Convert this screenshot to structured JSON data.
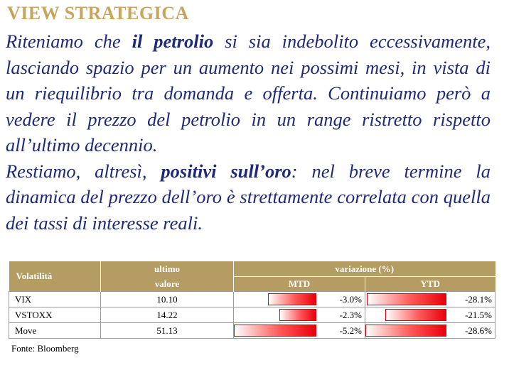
{
  "heading": "VIEW STRATEGICA",
  "paragraph1": {
    "before": "Riteniamo che ",
    "bold": "il petrolio",
    "after": " si sia indebolito eccessivamente, lasciando spazio per un aumento nei possimi mesi, in vista di un riequilibrio tra domanda e offerta. Continuiamo però a vedere il prezzo del petrolio in un range ristretto rispetto all’ultimo decennio."
  },
  "paragraph2": {
    "before": "Restiamo, altresì, ",
    "bold": "positivi sull’oro",
    "after": ": nel breve termine la dinamica del prezzo dell’oro è strettamente correlata con quella dei tassi di interesse reali."
  },
  "table": {
    "col_volatilita": "Volatilità",
    "col_ultimo_line1": "ultimo",
    "col_ultimo_line2": "valore",
    "col_variazione": "variazione (%)",
    "col_mtd": "MTD",
    "col_ytd": "YTD",
    "bar_color": "#e8000a",
    "rows": [
      {
        "name": "VIX",
        "value": "10.10",
        "mtd": "-3.0%",
        "ytd": "-28.1%",
        "mtd_num": -3.0,
        "ytd_num": -28.1
      },
      {
        "name": "VSTOXX",
        "value": "14.22",
        "mtd": "-2.3%",
        "ytd": "-21.5%",
        "mtd_num": -2.3,
        "ytd_num": -21.5
      },
      {
        "name": "Move",
        "value": "51.13",
        "mtd": "-5.2%",
        "ytd": "-28.6%",
        "mtd_num": -5.2,
        "ytd_num": -28.6
      }
    ]
  },
  "source": "Fonte: Bloomberg"
}
